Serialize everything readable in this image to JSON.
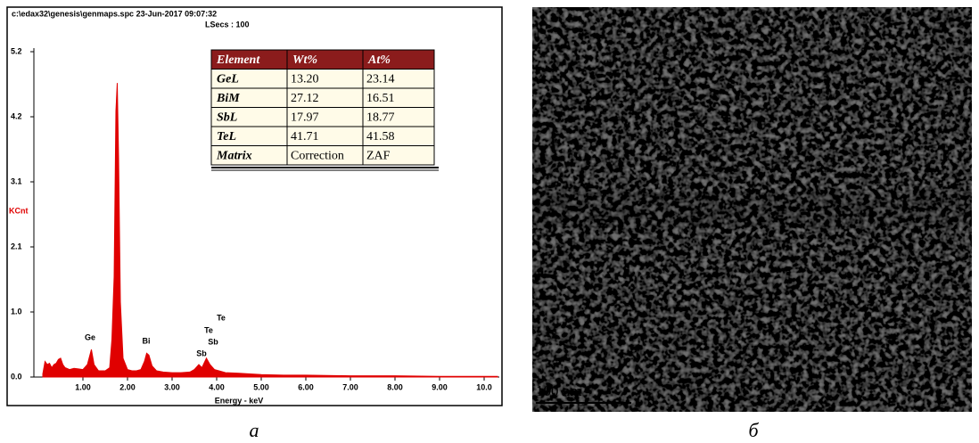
{
  "chart_data": {
    "type": "line",
    "header": [
      "c:\\edax32\\genesis\\genmaps.spc  23-Jun-2017 09:07:32",
      "LSecs : 100"
    ],
    "ylabel": "KCnt",
    "xlabel": "Energy - keV",
    "color": "#e00000",
    "x": [
      0.1,
      0.15,
      0.2,
      0.25,
      0.3,
      0.35,
      0.4,
      0.45,
      0.5,
      0.55,
      0.6,
      0.7,
      0.8,
      0.9,
      1.0,
      1.1,
      1.19,
      1.25,
      1.35,
      1.5,
      1.6,
      1.65,
      1.7,
      1.74,
      1.77,
      1.8,
      1.84,
      1.9,
      2.0,
      2.1,
      2.2,
      2.3,
      2.38,
      2.43,
      2.48,
      2.55,
      2.65,
      2.8,
      3.0,
      3.2,
      3.4,
      3.5,
      3.6,
      3.67,
      3.77,
      3.85,
      3.95,
      4.05,
      4.2,
      4.5,
      5.0,
      5.5,
      6.0,
      7.0,
      8.0,
      9.0,
      10.3
    ],
    "values": [
      0.05,
      0.25,
      0.2,
      0.22,
      0.15,
      0.2,
      0.22,
      0.28,
      0.3,
      0.2,
      0.15,
      0.12,
      0.14,
      0.13,
      0.12,
      0.2,
      0.44,
      0.2,
      0.1,
      0.1,
      0.15,
      0.6,
      1.6,
      4.25,
      4.7,
      3.5,
      1.2,
      0.3,
      0.12,
      0.1,
      0.1,
      0.12,
      0.25,
      0.38,
      0.35,
      0.18,
      0.1,
      0.08,
      0.07,
      0.07,
      0.08,
      0.12,
      0.2,
      0.15,
      0.3,
      0.2,
      0.12,
      0.1,
      0.07,
      0.06,
      0.04,
      0.03,
      0.03,
      0.02,
      0.02,
      0.01,
      0.01
    ],
    "xlim": [
      -0.1,
      10.34
    ],
    "ylim": [
      0,
      5.2
    ],
    "xticks": [
      {
        "value": 1,
        "label": "1.00"
      },
      {
        "value": 2,
        "label": "2.00"
      },
      {
        "value": 3,
        "label": "3.00"
      },
      {
        "value": 4,
        "label": "4.00"
      },
      {
        "value": 5,
        "label": "5.00"
      },
      {
        "value": 6,
        "label": "6.00"
      },
      {
        "value": 7,
        "label": "7.00"
      },
      {
        "value": 8,
        "label": "8.00"
      },
      {
        "value": 9,
        "label": "9.00"
      },
      {
        "value": 10,
        "label": "10.0"
      }
    ],
    "yticks": [
      {
        "value": 0,
        "label": "0.0"
      },
      {
        "value": 1.04,
        "label": "1.0"
      },
      {
        "value": 2.08,
        "label": "2.1"
      },
      {
        "value": 3.12,
        "label": "3.1"
      },
      {
        "value": 4.16,
        "label": "4.2"
      },
      {
        "value": 5.2,
        "label": "5.2"
      }
    ],
    "annotations": [
      "Ge",
      "Bi",
      "Sb",
      "Sb",
      "Te",
      "Te"
    ]
  },
  "table": {
    "header": [
      "Element",
      "Wt%",
      "At%"
    ],
    "rows": [
      [
        "GeL",
        "13.20",
        "23.14"
      ],
      [
        "BiM",
        "27.12",
        "16.51"
      ],
      [
        "SbL",
        "17.97",
        "18.77"
      ],
      [
        "TeL",
        "41.71",
        "41.58"
      ],
      [
        "Matrix",
        "Correction",
        "ZAF"
      ]
    ]
  },
  "scale_bar": "100 nm",
  "captions": [
    "а",
    "б"
  ]
}
